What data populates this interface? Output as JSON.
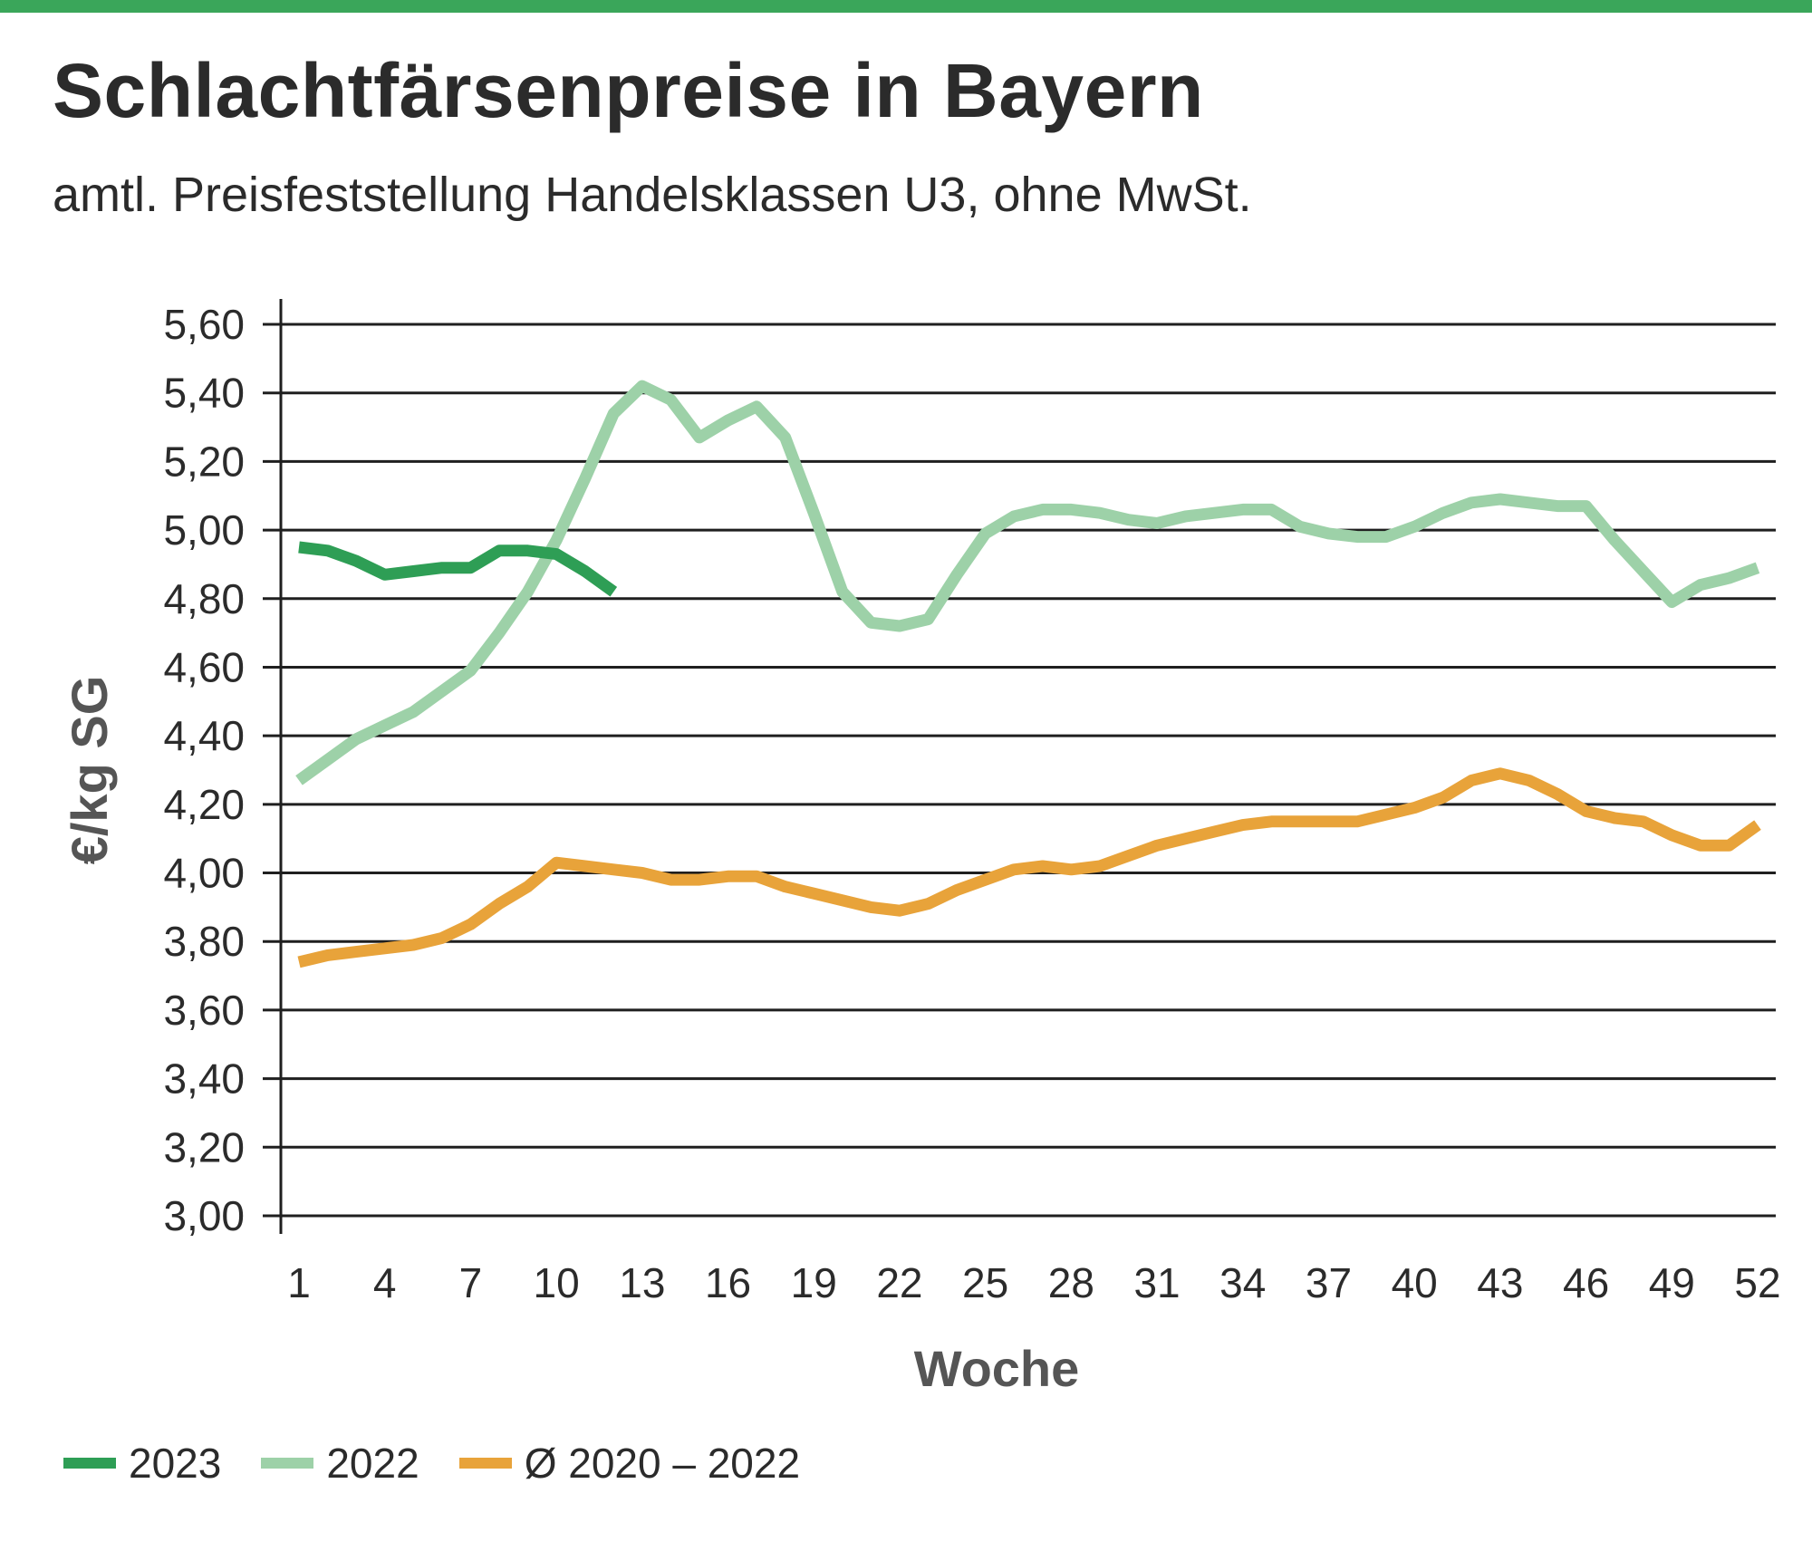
{
  "header": {
    "title": "Schlachtfärsenpreise in Bayern",
    "subtitle": "amtl. Preisfeststellung Handelsklassen U3, ohne MwSt."
  },
  "colors": {
    "accent_bar": "#3aa65a",
    "s2023": "#2e9e55",
    "s2022": "#9dd1a8",
    "avg": "#e8a33a",
    "grid": "#1f1f1f"
  },
  "chart_data": {
    "type": "line",
    "title": "Schlachtfärsenpreise in Bayern",
    "subtitle": "amtl. Preisfeststellung Handelsklassen U3, ohne MwSt.",
    "xlabel": "Woche",
    "ylabel": "€/kg SG",
    "xlim": [
      1,
      52
    ],
    "ylim": [
      3.0,
      5.6
    ],
    "x_ticks": [
      1,
      4,
      7,
      10,
      13,
      16,
      19,
      22,
      25,
      28,
      31,
      34,
      37,
      40,
      43,
      46,
      49,
      52
    ],
    "x_tick_labels": [
      "1",
      "4",
      "7",
      "10",
      "13",
      "16",
      "19",
      "22",
      "25",
      "28",
      "31",
      "34",
      "37",
      "40",
      "43",
      "46",
      "49",
      "52"
    ],
    "y_ticks": [
      3.0,
      3.2,
      3.4,
      3.6,
      3.8,
      4.0,
      4.2,
      4.4,
      4.6,
      4.8,
      5.0,
      5.2,
      5.4,
      5.6
    ],
    "y_tick_labels": [
      "3,00",
      "3,20",
      "3,40",
      "3,60",
      "3,80",
      "4,00",
      "4,20",
      "4,40",
      "4,60",
      "4,80",
      "5,00",
      "5,20",
      "5,40",
      "5,60"
    ],
    "grid": true,
    "legend_position": "bottom-left",
    "series": [
      {
        "name": "2023",
        "color": "#2e9e55",
        "x": [
          1,
          2,
          3,
          4,
          5,
          6,
          7,
          8,
          9,
          10,
          11,
          12
        ],
        "values": [
          4.95,
          4.94,
          4.91,
          4.87,
          4.88,
          4.89,
          4.89,
          4.94,
          4.94,
          4.93,
          4.88,
          4.82
        ]
      },
      {
        "name": "2022",
        "color": "#9dd1a8",
        "x": [
          1,
          2,
          3,
          4,
          5,
          6,
          7,
          8,
          9,
          10,
          11,
          12,
          13,
          14,
          15,
          16,
          17,
          18,
          19,
          20,
          21,
          22,
          23,
          24,
          25,
          26,
          27,
          28,
          29,
          30,
          31,
          32,
          33,
          34,
          35,
          36,
          37,
          38,
          39,
          40,
          41,
          42,
          43,
          44,
          45,
          46,
          47,
          48,
          49,
          50,
          51,
          52
        ],
        "values": [
          4.27,
          4.33,
          4.39,
          4.43,
          4.47,
          4.53,
          4.59,
          4.7,
          4.82,
          4.97,
          5.15,
          5.34,
          5.42,
          5.38,
          5.27,
          5.32,
          5.36,
          5.27,
          5.05,
          4.82,
          4.73,
          4.72,
          4.74,
          4.87,
          4.99,
          5.04,
          5.06,
          5.06,
          5.05,
          5.03,
          5.02,
          5.04,
          5.05,
          5.06,
          5.06,
          5.01,
          4.99,
          4.98,
          4.98,
          5.01,
          5.05,
          5.08,
          5.09,
          5.08,
          5.07,
          5.07,
          4.97,
          4.88,
          4.79,
          4.84,
          4.86,
          4.89
        ]
      },
      {
        "name": "Ø 2020 – 2022",
        "color": "#e8a33a",
        "x": [
          1,
          2,
          3,
          4,
          5,
          6,
          7,
          8,
          9,
          10,
          11,
          12,
          13,
          14,
          15,
          16,
          17,
          18,
          19,
          20,
          21,
          22,
          23,
          24,
          25,
          26,
          27,
          28,
          29,
          30,
          31,
          32,
          33,
          34,
          35,
          36,
          37,
          38,
          39,
          40,
          41,
          42,
          43,
          44,
          45,
          46,
          47,
          48,
          49,
          50,
          51,
          52
        ],
        "values": [
          3.74,
          3.76,
          3.77,
          3.78,
          3.79,
          3.81,
          3.85,
          3.91,
          3.96,
          4.03,
          4.02,
          4.01,
          4.0,
          3.98,
          3.98,
          3.99,
          3.99,
          3.96,
          3.94,
          3.92,
          3.9,
          3.89,
          3.91,
          3.95,
          3.98,
          4.01,
          4.02,
          4.01,
          4.02,
          4.05,
          4.08,
          4.1,
          4.12,
          4.14,
          4.15,
          4.15,
          4.15,
          4.15,
          4.17,
          4.19,
          4.22,
          4.27,
          4.29,
          4.27,
          4.23,
          4.18,
          4.16,
          4.15,
          4.11,
          4.08,
          4.08,
          4.14
        ]
      }
    ]
  },
  "legend": {
    "items": [
      {
        "label": "2023",
        "color": "#2e9e55"
      },
      {
        "label": "2022",
        "color": "#9dd1a8"
      },
      {
        "label": "Ø 2020 – 2022",
        "color": "#e8a33a"
      }
    ]
  }
}
